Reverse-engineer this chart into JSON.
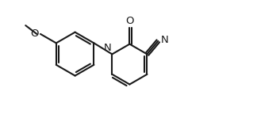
{
  "background_color": "#ffffff",
  "line_color": "#1a1a1a",
  "lw": 1.5,
  "fs": 9.5,
  "xlim": [
    0,
    11
  ],
  "ylim": [
    0,
    6
  ]
}
